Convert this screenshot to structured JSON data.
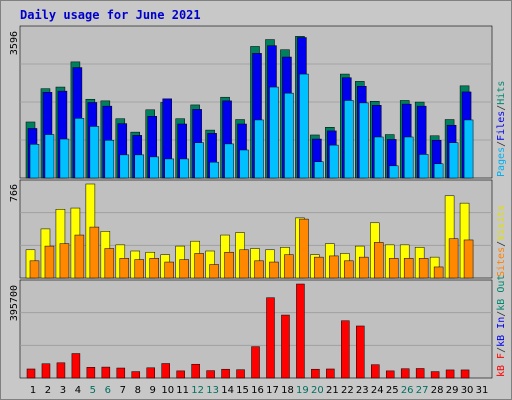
{
  "chart_data": [
    {
      "type": "bar",
      "panel": "top",
      "title": "Daily usage for June 2021",
      "max_label": "3596",
      "ylim": [
        0,
        3596
      ],
      "legend": [
        {
          "text": "Pages",
          "color": "#00b0f0"
        },
        {
          "text": "/",
          "color": "#333333"
        },
        {
          "text": "Files",
          "color": "#0000ee"
        },
        {
          "text": "/",
          "color": "#333333"
        },
        {
          "text": "Hits",
          "color": "#008870"
        }
      ],
      "series": [
        {
          "name": "Hits",
          "color": "#00805c",
          "values": [
            1380,
            2200,
            2240,
            2860,
            1940,
            1900,
            1460,
            1130,
            1680,
            1860,
            1460,
            1800,
            1180,
            1990,
            1440,
            3240,
            3410,
            3160,
            3490,
            1060,
            1250,
            2560,
            2380,
            1890,
            1070,
            1910,
            1870,
            1040,
            1440,
            2270
          ]
        },
        {
          "name": "Files",
          "color": "#0000ee",
          "values": [
            1220,
            2110,
            2140,
            2720,
            1860,
            1770,
            1340,
            1050,
            1520,
            1950,
            1330,
            1690,
            1100,
            1900,
            1330,
            3070,
            3260,
            2980,
            3460,
            960,
            1160,
            2470,
            2260,
            1790,
            950,
            1820,
            1770,
            930,
            1300,
            2120
          ]
        },
        {
          "name": "Pages",
          "color": "#00c0ff",
          "values": [
            830,
            1070,
            960,
            1470,
            1270,
            930,
            570,
            570,
            520,
            470,
            470,
            870,
            390,
            840,
            690,
            1430,
            2240,
            2090,
            2560,
            400,
            810,
            1910,
            1850,
            1010,
            300,
            1010,
            580,
            350,
            870,
            1430
          ]
        }
      ]
    },
    {
      "type": "bar",
      "panel": "middle",
      "max_label": "766",
      "ylim": [
        0,
        766
      ],
      "legend": [
        {
          "text": "Sites",
          "color": "#ff8000"
        },
        {
          "text": "/",
          "color": "#333333"
        },
        {
          "text": "Visits",
          "color": "#e0e000"
        }
      ],
      "series": [
        {
          "name": "Visits",
          "color": "#ffff00",
          "values": [
            230,
            400,
            560,
            570,
            766,
            380,
            270,
            220,
            210,
            190,
            260,
            300,
            220,
            350,
            370,
            240,
            230,
            250,
            490,
            190,
            280,
            200,
            260,
            450,
            270,
            270,
            250,
            170,
            670,
            610
          ]
        },
        {
          "name": "Sites",
          "color": "#ff8800",
          "values": [
            140,
            260,
            280,
            350,
            415,
            240,
            160,
            150,
            160,
            130,
            150,
            200,
            110,
            210,
            230,
            140,
            130,
            190,
            480,
            170,
            180,
            140,
            170,
            290,
            160,
            160,
            160,
            90,
            320,
            310
          ]
        }
      ]
    },
    {
      "type": "bar",
      "panel": "bottom",
      "max_label": "395700",
      "ylim": [
        0,
        395700
      ],
      "legend": [
        {
          "text": "kB F",
          "color": "#ff0000"
        },
        {
          "text": "/",
          "color": "#333333"
        },
        {
          "text": "kB In",
          "color": "#0000ee"
        },
        {
          "text": "/",
          "color": "#333333"
        },
        {
          "text": "kB Out",
          "color": "#008870"
        }
      ],
      "series": [
        {
          "name": "kB F",
          "color": "#ff0000",
          "values": [
            38000,
            60000,
            64000,
            103000,
            45000,
            46000,
            42000,
            27000,
            43000,
            61000,
            30000,
            58000,
            31000,
            37000,
            35000,
            132000,
            338000,
            265000,
            395700,
            37000,
            38000,
            241000,
            219000,
            56000,
            30000,
            39000,
            40000,
            27000,
            34000,
            34000
          ]
        }
      ]
    }
  ],
  "x_axis": {
    "labels": [
      "1",
      "2",
      "3",
      "4",
      "5",
      "6",
      "7",
      "8",
      "9",
      "10",
      "11",
      "12",
      "13",
      "14",
      "15",
      "16",
      "17",
      "18",
      "19",
      "20",
      "21",
      "22",
      "23",
      "24",
      "25",
      "26",
      "27",
      "28",
      "29",
      "30",
      "31"
    ],
    "weekend_days": [
      "5",
      "6",
      "12",
      "13",
      "19",
      "20",
      "26",
      "27"
    ],
    "weekday_color": "#000000",
    "weekend_color": "#007060"
  },
  "colors": {
    "frame_background": "#c8c8c8",
    "plot_background": "#c0c0c0",
    "gridline": "#9a9a9a"
  }
}
